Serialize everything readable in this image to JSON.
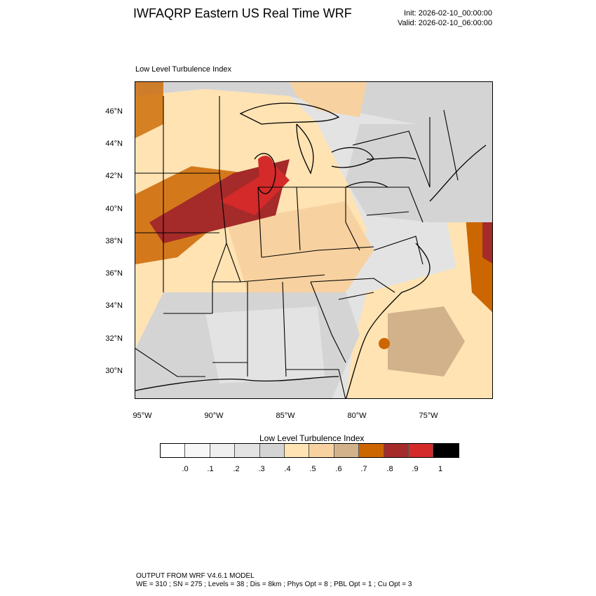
{
  "header": {
    "title": "IWFAQRP Eastern US Real Time WRF",
    "init": "Init: 2026-02-10_00:00:00",
    "valid": "Valid: 2026-02-10_06:00:00"
  },
  "map": {
    "subtitle": "Low Level Turbulence Index",
    "lat_labels": [
      "46°N",
      "44°N",
      "42°N",
      "40°N",
      "38°N",
      "36°N",
      "34°N",
      "32°N",
      "30°N"
    ],
    "lon_labels": [
      "95°W",
      "90°W",
      "85°W",
      "80°W",
      "75°W"
    ],
    "field_regions": [
      {
        "area": "Lake Michigan / northern Illinois core",
        "level": 0.9
      },
      {
        "area": "Iowa / Missouri / Illinois band",
        "level": 0.8
      },
      {
        "area": "Kansas / Oklahoma / Arkansas",
        "level": 0.7
      },
      {
        "area": "Ohio Valley / Tennessee",
        "level": 0.5
      },
      {
        "area": "Gulf states",
        "level": 0.3
      },
      {
        "area": "Upper Great Lakes / Ontario",
        "level": 0.3
      },
      {
        "area": "New England / New York",
        "level": 0.3
      },
      {
        "area": "Western Atlantic offshore",
        "level": 0.7
      },
      {
        "area": "Far offshore Atlantic maximum",
        "level": 0.8
      }
    ]
  },
  "colorbar": {
    "title": "Low Level Turbulence Index",
    "colors": [
      "#ffffff",
      "#f7f7f7",
      "#efefef",
      "#e3e3e3",
      "#d4d4d4",
      "#ffe3b3",
      "#f7d2a0",
      "#d2b28a",
      "#cc6600",
      "#a52a2a",
      "#d42a2a",
      "#000000"
    ],
    "labels": [
      ".0",
      ".1",
      ".2",
      ".3",
      ".4",
      ".5",
      ".6",
      ".7",
      ".8",
      ".9",
      "1"
    ]
  },
  "footer": {
    "line1": "OUTPUT FROM WRF V4.6.1 MODEL",
    "line2": "WE = 310 ; SN = 275 ; Levels = 38 ; Dis = 8km ; Phys Opt = 8 ; PBL Opt = 1 ; Cu Opt = 3"
  }
}
